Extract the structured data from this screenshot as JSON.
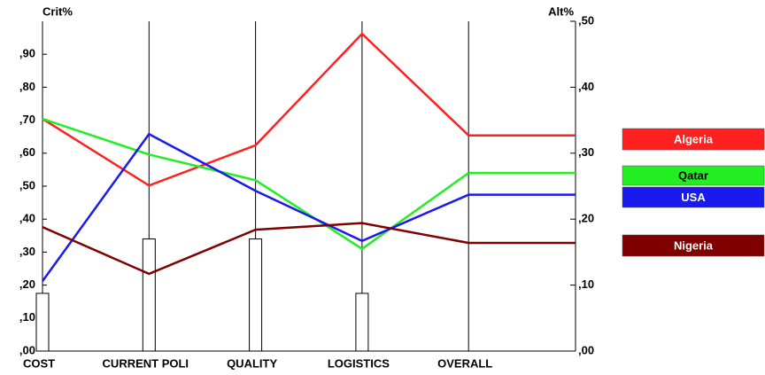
{
  "chart_data": {
    "type": "bar",
    "y_label": "Crit%",
    "y2_label": "Alt%",
    "categories": [
      "COST",
      "CURRENT POLI",
      "QUALITY",
      "LOGISTICS",
      "OVERALL"
    ],
    "values": [
      0.175,
      0.34,
      0.34,
      0.175,
      null
    ],
    "color": "#ffffff",
    "ylim": [
      0,
      1
    ],
    "yticks": [
      {
        "value": 0,
        "label": ",00"
      },
      {
        "value": 0.1,
        "label": ",10"
      },
      {
        "value": 0.2,
        "label": ",20"
      },
      {
        "value": 0.3,
        "label": ",30"
      },
      {
        "value": 0.4,
        "label": ",40"
      },
      {
        "value": 0.5,
        "label": ",50"
      },
      {
        "value": 0.6,
        "label": ",60"
      },
      {
        "value": 0.7,
        "label": ",70"
      },
      {
        "value": 0.8,
        "label": ",80"
      },
      {
        "value": 0.9,
        "label": ",90"
      }
    ],
    "y2lim": [
      0,
      0.5
    ],
    "y2ticks": [
      {
        "value": 0,
        "label": ",00"
      },
      {
        "value": 0.1,
        "label": ",10"
      },
      {
        "value": 0.2,
        "label": ",20"
      },
      {
        "value": 0.3,
        "label": ",30"
      },
      {
        "value": 0.4,
        "label": ",40"
      },
      {
        "value": 0.5,
        "label": ",50"
      }
    ],
    "series": [
      {
        "name": "Algeria",
        "color": "#ff2020",
        "axis": "y2",
        "values": [
          0.352,
          0.251,
          0.312,
          0.481,
          0.327
        ]
      },
      {
        "name": "Qatar",
        "color": "#22ee22",
        "axis": "y2",
        "values": [
          0.352,
          0.298,
          0.259,
          0.155,
          0.27
        ]
      },
      {
        "name": "USA",
        "color": "#1a1aee",
        "axis": "y2",
        "values": [
          0.106,
          0.329,
          0.243,
          0.167,
          0.237
        ]
      },
      {
        "name": "Nigeria",
        "color": "#800000",
        "axis": "y2",
        "values": [
          0.188,
          0.117,
          0.184,
          0.194,
          0.164
        ]
      }
    ]
  }
}
